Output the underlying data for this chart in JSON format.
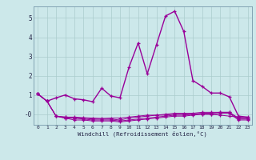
{
  "title": "",
  "xlabel": "Windchill (Refroidissement éolien,°C)",
  "background_color": "#cce8ea",
  "grid_color": "#aacccc",
  "line_color": "#990099",
  "xlim": [
    -0.5,
    23.5
  ],
  "ylim": [
    -0.55,
    5.6
  ],
  "xtick_vals": [
    0,
    1,
    2,
    3,
    4,
    5,
    6,
    7,
    8,
    9,
    10,
    11,
    12,
    13,
    14,
    15,
    16,
    17,
    18,
    19,
    20,
    21,
    22,
    23
  ],
  "xtick_labels": [
    "0",
    "1",
    "2",
    "3",
    "4",
    "5",
    "6",
    "7",
    "8",
    "9",
    "10",
    "11",
    "12",
    "13",
    "14",
    "15",
    "16",
    "17",
    "18",
    "19",
    "20",
    "21",
    "22",
    "23"
  ],
  "ytick_vals": [
    0,
    1,
    2,
    3,
    4,
    5
  ],
  "ytick_labels": [
    "-0",
    "1",
    "2",
    "3",
    "4",
    "5"
  ],
  "series": [
    [
      1.05,
      0.68,
      0.85,
      1.0,
      0.8,
      0.75,
      0.65,
      1.35,
      0.95,
      0.85,
      2.45,
      3.7,
      2.1,
      3.6,
      5.1,
      5.35,
      4.3,
      1.75,
      1.45,
      1.1,
      1.1,
      0.9,
      -0.1,
      -0.15
    ],
    [
      1.05,
      0.68,
      -0.1,
      -0.15,
      -0.15,
      -0.18,
      -0.2,
      -0.22,
      -0.2,
      -0.2,
      -0.15,
      -0.1,
      -0.05,
      -0.05,
      -0.05,
      0.0,
      0.0,
      0.0,
      0.0,
      0.0,
      -0.05,
      -0.1,
      -0.15,
      -0.2
    ],
    [
      1.05,
      0.68,
      -0.1,
      -0.15,
      -0.2,
      -0.2,
      -0.25,
      -0.25,
      -0.25,
      -0.3,
      -0.2,
      -0.15,
      -0.1,
      -0.05,
      0.0,
      0.05,
      0.05,
      0.05,
      0.1,
      0.1,
      0.1,
      0.1,
      -0.2,
      -0.2
    ],
    [
      1.05,
      0.68,
      -0.1,
      -0.2,
      -0.2,
      -0.25,
      -0.3,
      -0.3,
      -0.3,
      -0.35,
      -0.3,
      -0.25,
      -0.2,
      -0.15,
      -0.1,
      -0.05,
      -0.05,
      0.0,
      0.05,
      0.05,
      0.1,
      0.1,
      -0.25,
      -0.25
    ],
    [
      1.05,
      0.68,
      -0.1,
      -0.2,
      -0.3,
      -0.3,
      -0.35,
      -0.35,
      -0.35,
      -0.4,
      -0.35,
      -0.3,
      -0.25,
      -0.2,
      -0.15,
      -0.1,
      -0.1,
      -0.05,
      0.0,
      0.0,
      0.05,
      0.05,
      -0.3,
      -0.3
    ]
  ]
}
